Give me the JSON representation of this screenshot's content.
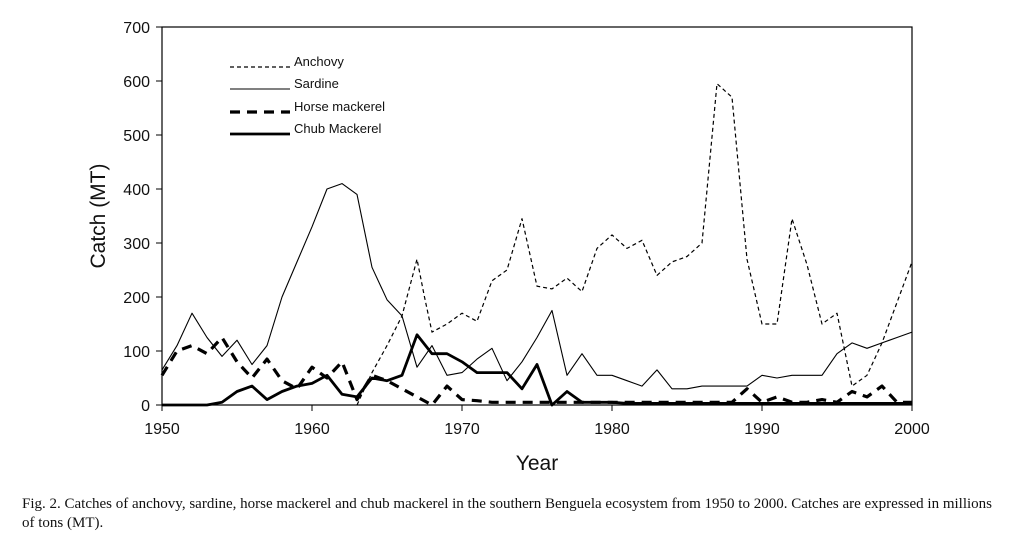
{
  "caption": "Fig. 2. Catches of anchovy, sardine, horse mackerel and chub mackerel in the southern Benguela ecosystem from 1950 to 2000. Catches are expressed in millions of tons (MT).",
  "chart_data": {
    "type": "line",
    "title": "",
    "xlabel": "Year",
    "ylabel": "Catch (MT)",
    "xlim": [
      1950,
      2000
    ],
    "ylim": [
      0,
      700
    ],
    "xticks": [
      1950,
      1960,
      1970,
      1980,
      1990,
      2000
    ],
    "yticks": [
      0,
      100,
      200,
      300,
      400,
      500,
      600,
      700
    ],
    "grid": false,
    "legend_position": "top-left",
    "series": [
      {
        "name": "Anchovy",
        "style": "dotted-thin",
        "color": "#000000",
        "x": [
          1963,
          1964,
          1965,
          1966,
          1967,
          1967.5,
          1968,
          1969,
          1969.5,
          1970,
          1971,
          1972,
          1973,
          1974,
          1975,
          1976,
          1977,
          1978,
          1979,
          1980,
          1981,
          1982,
          1983,
          1984,
          1985,
          1986,
          1987,
          1988,
          1989,
          1990,
          1991,
          1992,
          1993,
          1994,
          1995,
          1996,
          1997,
          1998,
          1999,
          2000
        ],
        "y": [
          0,
          60,
          110,
          165,
          270,
          200,
          135,
          150,
          160,
          170,
          155,
          230,
          250,
          345,
          220,
          215,
          235,
          210,
          290,
          315,
          290,
          305,
          240,
          265,
          275,
          300,
          595,
          570,
          270,
          150,
          150,
          345,
          260,
          150,
          170,
          35,
          55,
          115,
          190,
          265
        ]
      },
      {
        "name": "Sardine",
        "style": "solid-thin",
        "color": "#000000",
        "x": [
          1950,
          1951,
          1952,
          1953,
          1954,
          1955,
          1956,
          1957,
          1958,
          1959,
          1960,
          1961,
          1962,
          1963,
          1964,
          1965,
          1966,
          1967,
          1968,
          1969,
          1970,
          1971,
          1972,
          1973,
          1974,
          1975,
          1976,
          1977,
          1978,
          1979,
          1980,
          1981,
          1982,
          1983,
          1984,
          1985,
          1986,
          1987,
          1988,
          1989,
          1990,
          1991,
          1992,
          1993,
          1994,
          1995,
          1996,
          1997,
          1998,
          1999,
          2000
        ],
        "y": [
          65,
          110,
          170,
          125,
          90,
          120,
          75,
          110,
          200,
          265,
          330,
          400,
          410,
          390,
          255,
          195,
          165,
          70,
          110,
          55,
          60,
          85,
          105,
          45,
          80,
          125,
          175,
          55,
          95,
          55,
          55,
          45,
          35,
          65,
          30,
          30,
          35,
          35,
          35,
          35,
          55,
          50,
          55,
          55,
          55,
          95,
          115,
          105,
          115,
          125,
          135
        ]
      },
      {
        "name": "Horse mackerel",
        "style": "dashed-thick",
        "color": "#000000",
        "x": [
          1950,
          1951,
          1952,
          1953,
          1954,
          1955,
          1956,
          1957,
          1958,
          1959,
          1960,
          1961,
          1962,
          1963,
          1964,
          1965,
          1966,
          1967,
          1968,
          1969,
          1970,
          1971,
          1972,
          1973,
          1974,
          1975,
          1976,
          1977,
          1978,
          1979,
          1980,
          1981,
          1982,
          1983,
          1984,
          1985,
          1986,
          1987,
          1988,
          1989,
          1990,
          1991,
          1992,
          1993,
          1994,
          1995,
          1996,
          1997,
          1998,
          1999,
          2000
        ],
        "y": [
          55,
          100,
          110,
          95,
          125,
          80,
          50,
          85,
          45,
          30,
          70,
          50,
          80,
          10,
          55,
          45,
          30,
          15,
          0,
          35,
          10,
          8,
          5,
          5,
          5,
          5,
          5,
          5,
          5,
          5,
          5,
          5,
          5,
          5,
          5,
          5,
          5,
          5,
          5,
          30,
          5,
          15,
          5,
          5,
          10,
          5,
          25,
          15,
          35,
          5,
          5
        ]
      },
      {
        "name": "Chub Mackerel",
        "style": "solid-thick",
        "color": "#000000",
        "x": [
          1950,
          1951,
          1952,
          1953,
          1954,
          1955,
          1956,
          1957,
          1958,
          1959,
          1960,
          1961,
          1962,
          1963,
          1964,
          1965,
          1966,
          1967,
          1968,
          1969,
          1970,
          1971,
          1972,
          1973,
          1974,
          1975,
          1976,
          1977,
          1978,
          1979,
          1980,
          1981,
          1982,
          1983,
          1984,
          1985,
          1986,
          1987,
          1988,
          1989,
          1990,
          1991,
          1992,
          1993,
          1994,
          1995,
          1996,
          1997,
          1998,
          1999,
          2000
        ],
        "y": [
          0,
          0,
          0,
          0,
          5,
          25,
          35,
          10,
          25,
          35,
          40,
          55,
          20,
          15,
          50,
          45,
          55,
          130,
          95,
          95,
          80,
          60,
          60,
          60,
          30,
          75,
          0,
          25,
          5,
          5,
          5,
          3,
          3,
          3,
          3,
          3,
          3,
          3,
          3,
          3,
          3,
          3,
          3,
          3,
          3,
          3,
          3,
          3,
          3,
          3,
          3
        ]
      }
    ]
  }
}
